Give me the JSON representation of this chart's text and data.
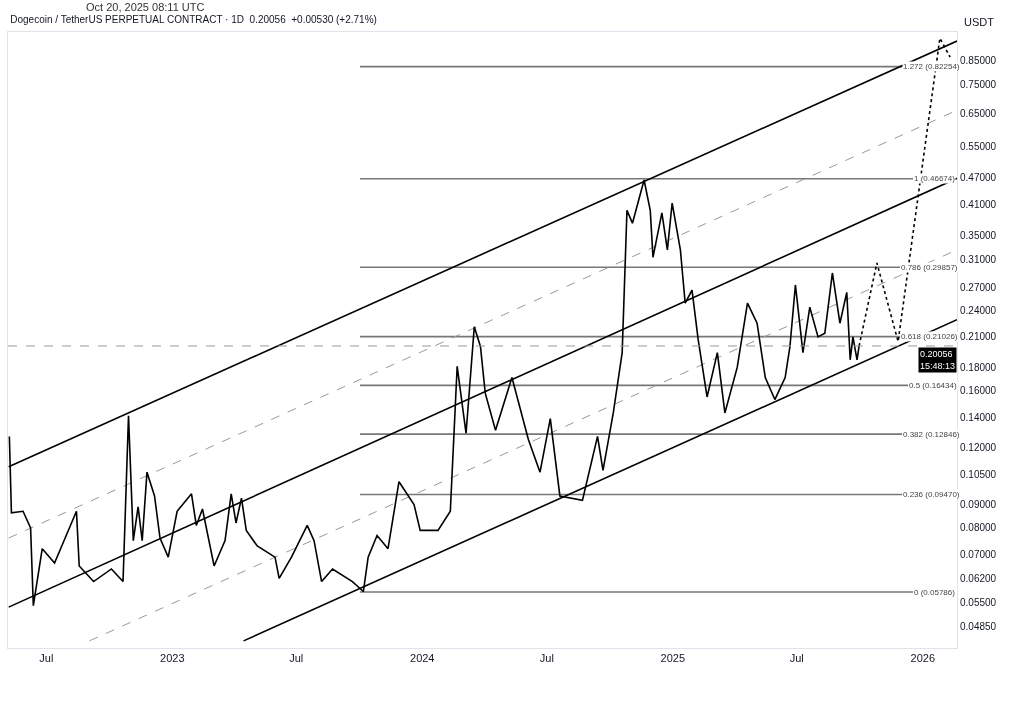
{
  "chart_data": {
    "type": "line",
    "title": "Dogecoin / TetherUS PERPETUAL CONTRACT · 1D  0.20056  +0.00530 (+2.71%)",
    "ylabel": "USDT",
    "annotations": [
      "Oct 20, 2025 08:11 UTC",
      {
        "text": "1.272 (0.82254)",
        "x": "2025-12-02",
        "y": 0.82254
      },
      {
        "text": "1 (0.46674)",
        "x": "2025-12-18",
        "y": 0.46674
      },
      {
        "text": "0.786 (0.29857)",
        "x": "2025-11-29",
        "y": 0.29857
      },
      {
        "text": "0.618 (0.21026)",
        "x": "2025-11-29",
        "y": 0.21026
      },
      {
        "text": "0.5 (0.16434)",
        "x": "2025-12-11",
        "y": 0.16434
      },
      {
        "text": "0.382 (0.12846)",
        "x": "2025-12-02",
        "y": 0.12846
      },
      {
        "text": "0.236 (0.09470)",
        "x": "2025-12-02",
        "y": 0.0947
      },
      {
        "text": "0 (0.05786)",
        "x": "2025-12-18",
        "y": 0.05786
      }
    ],
    "log": "y",
    "marker": "none",
    "xlim": [
      "2022-05-06",
      "2026-02-20"
    ],
    "xticks": [
      {
        "value": "2022-07-01",
        "label": "Jul"
      },
      {
        "value": "2023-01-01",
        "label": "2023"
      },
      {
        "value": "2023-07-01",
        "label": "Jul"
      },
      {
        "value": "2024-01-01",
        "label": "2024"
      },
      {
        "value": "2024-07-01",
        "label": "Jul"
      },
      {
        "value": "2025-01-01",
        "label": "2025"
      },
      {
        "value": "2025-07-01",
        "label": "Jul"
      },
      {
        "value": "2026-01-01",
        "label": "2026"
      }
    ],
    "ylim": [
      0.0436,
      0.98
    ],
    "yticks": [
      {
        "value": 0.85,
        "label": "0.85000"
      },
      {
        "value": 0.75,
        "label": "0.75000"
      },
      {
        "value": 0.65,
        "label": "0.65000"
      },
      {
        "value": 0.55,
        "label": "0.55000"
      },
      {
        "value": 0.47,
        "label": "0.47000"
      },
      {
        "value": 0.41,
        "label": "0.41000"
      },
      {
        "value": 0.35,
        "label": "0.35000"
      },
      {
        "value": 0.31,
        "label": "0.31000"
      },
      {
        "value": 0.27,
        "label": "0.27000"
      },
      {
        "value": 0.24,
        "label": "0.24000"
      },
      {
        "value": 0.21,
        "label": "0.21000"
      },
      {
        "value": 0.18,
        "label": "0.18000"
      },
      {
        "value": 0.16,
        "label": "0.16000"
      },
      {
        "value": 0.14,
        "label": "0.14000"
      },
      {
        "value": 0.12,
        "label": "0.12000"
      },
      {
        "value": 0.105,
        "label": "0.10500"
      },
      {
        "value": 0.09,
        "label": "0.09000"
      },
      {
        "value": 0.08,
        "label": "0.08000"
      },
      {
        "value": 0.07,
        "label": "0.07000"
      },
      {
        "value": 0.062,
        "label": "0.06200"
      },
      {
        "value": 0.055,
        "label": "0.05500"
      },
      {
        "value": 0.0485,
        "label": "0.04850"
      }
    ],
    "ref_lines": [
      {
        "axis": "y",
        "value": 0.20056,
        "label": "0.20056\n15:48:13",
        "color": "#999999",
        "line_style": "dashed"
      }
    ],
    "series": [
      {
        "color": "#777777",
        "line_style": "solid",
        "x": [
          "2023-10-02",
          "2025-12-02"
        ],
        "values": [
          0.82254,
          0.82254
        ]
      },
      {
        "color": "#777777",
        "line_style": "solid",
        "x": [
          "2023-10-02",
          "2025-12-18"
        ],
        "values": [
          0.46674,
          0.46674
        ]
      },
      {
        "color": "#777777",
        "line_style": "solid",
        "x": [
          "2023-10-02",
          "2025-11-29"
        ],
        "values": [
          0.29857,
          0.29857
        ]
      },
      {
        "color": "#777777",
        "line_style": "solid",
        "x": [
          "2023-10-02",
          "2025-11-29"
        ],
        "values": [
          0.21026,
          0.21026
        ]
      },
      {
        "color": "#777777",
        "line_style": "solid",
        "x": [
          "2023-10-02",
          "2025-12-11"
        ],
        "values": [
          0.16434,
          0.16434
        ]
      },
      {
        "color": "#777777",
        "line_style": "solid",
        "x": [
          "2023-10-02",
          "2025-12-02"
        ],
        "values": [
          0.12846,
          0.12846
        ]
      },
      {
        "color": "#777777",
        "line_style": "solid",
        "x": [
          "2023-10-02",
          "2025-12-02"
        ],
        "values": [
          0.0947,
          0.0947
        ]
      },
      {
        "color": "#777777",
        "line_style": "solid",
        "x": [
          "2023-10-02",
          "2025-12-18"
        ],
        "values": [
          0.05786,
          0.05786
        ]
      },
      {
        "color": "#000000",
        "line_style": "solid",
        "x": [
          "2022-05-07",
          "2026-02-20"
        ],
        "values": [
          0.109,
          0.936
        ]
      },
      {
        "color": "#000000",
        "line_style": "solid",
        "x": [
          "2022-05-07",
          "2026-02-20"
        ],
        "values": [
          0.0536,
          0.468
        ]
      },
      {
        "color": "#000000",
        "line_style": "solid",
        "x": [
          "2023-04-15",
          "2026-02-20"
        ],
        "values": [
          0.0452,
          0.229
        ]
      },
      {
        "color": "#999999",
        "line_style": "dashed",
        "x": [
          "2022-05-07",
          "2026-02-20"
        ],
        "values": [
          0.076,
          0.66
        ]
      },
      {
        "color": "#999999",
        "line_style": "dashed",
        "x": [
          "2022-09-02",
          "2026-02-20"
        ],
        "values": [
          0.0452,
          0.326
        ]
      },
      {
        "color": "#000000",
        "line_style": "dotted",
        "x": [
          "2025-09-30",
          "2025-10-26",
          "2025-11-26",
          "2026-01-26",
          "2026-02-10"
        ],
        "values": [
          0.20056,
          0.305,
          0.205,
          0.95,
          0.863
        ]
      },
      {
        "color": "#000000",
        "line_style": "solid",
        "x": [
          "2022-05-08",
          "2022-05-11",
          "2022-05-28",
          "2022-06-08",
          "2022-06-12",
          "2022-06-25",
          "2022-07-13",
          "2022-08-14",
          "2022-08-18",
          "2022-09-08",
          "2022-10-04",
          "2022-10-21",
          "2022-10-29",
          "2022-11-05",
          "2022-11-12",
          "2022-11-18",
          "2022-11-25",
          "2022-12-06",
          "2022-12-14",
          "2022-12-26",
          "2023-01-08",
          "2023-01-29",
          "2023-02-05",
          "2023-02-14",
          "2023-03-03",
          "2023-03-19",
          "2023-03-28",
          "2023-04-04",
          "2023-04-12",
          "2023-04-19",
          "2023-05-05",
          "2023-05-31",
          "2023-06-06",
          "2023-06-24",
          "2023-07-17",
          "2023-07-27",
          "2023-08-07",
          "2023-08-23",
          "2023-09-21",
          "2023-10-07",
          "2023-10-14",
          "2023-10-27",
          "2023-11-12",
          "2023-11-28",
          "2023-12-20",
          "2023-12-29",
          "2024-01-24",
          "2024-02-11",
          "2024-02-21",
          "2024-03-05",
          "2024-03-17",
          "2024-03-26",
          "2024-04-02",
          "2024-04-17",
          "2024-05-11",
          "2024-06-04",
          "2024-06-21",
          "2024-07-06",
          "2024-07-20",
          "2024-08-22",
          "2024-09-13",
          "2024-09-21",
          "2024-10-06",
          "2024-10-19",
          "2024-10-26",
          "2024-11-03",
          "2024-11-20",
          "2024-11-29",
          "2024-12-03",
          "2024-12-16",
          "2024-12-24",
          "2024-12-31",
          "2025-01-12",
          "2025-01-19",
          "2025-01-29",
          "2025-02-07",
          "2025-02-20",
          "2025-03-07",
          "2025-03-18",
          "2025-04-05",
          "2025-04-20",
          "2025-05-04",
          "2025-05-16",
          "2025-05-30",
          "2025-06-14",
          "2025-06-21",
          "2025-06-29",
          "2025-07-10",
          "2025-07-20",
          "2025-08-01",
          "2025-08-11",
          "2025-08-22",
          "2025-09-02",
          "2025-09-12",
          "2025-09-17",
          "2025-09-21",
          "2025-09-27",
          "2025-09-30"
        ],
        "values": [
          0.127,
          0.0863,
          0.087,
          0.08,
          0.054,
          0.072,
          0.067,
          0.087,
          0.066,
          0.061,
          0.065,
          0.061,
          0.141,
          0.075,
          0.089,
          0.075,
          0.106,
          0.094,
          0.076,
          0.069,
          0.087,
          0.095,
          0.081,
          0.088,
          0.066,
          0.075,
          0.095,
          0.082,
          0.093,
          0.079,
          0.073,
          0.069,
          0.062,
          0.069,
          0.081,
          0.075,
          0.061,
          0.065,
          0.061,
          0.058,
          0.069,
          0.077,
          0.072,
          0.101,
          0.09,
          0.079,
          0.079,
          0.087,
          0.181,
          0.129,
          0.221,
          0.2,
          0.158,
          0.131,
          0.171,
          0.125,
          0.106,
          0.139,
          0.094,
          0.092,
          0.127,
          0.107,
          0.143,
          0.194,
          0.398,
          0.373,
          0.464,
          0.398,
          0.314,
          0.393,
          0.326,
          0.413,
          0.326,
          0.249,
          0.266,
          0.207,
          0.155,
          0.194,
          0.143,
          0.18,
          0.249,
          0.225,
          0.171,
          0.153,
          0.171,
          0.2,
          0.273,
          0.194,
          0.244,
          0.21,
          0.214,
          0.29,
          0.225,
          0.263,
          0.187,
          0.21,
          0.187,
          0.20056
        ]
      }
    ]
  }
}
